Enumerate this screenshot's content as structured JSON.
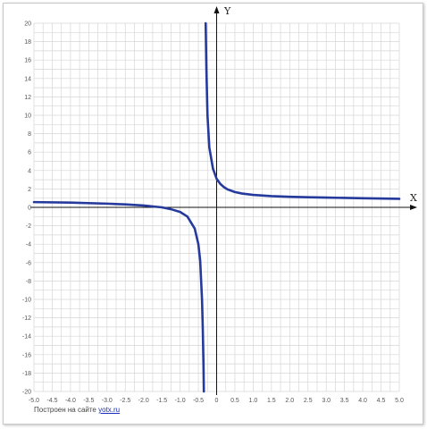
{
  "credit": {
    "text": "Построен на сайте",
    "link": "yotx.ru"
  },
  "chart_data": {
    "type": "line",
    "title": "",
    "xlabel": "X",
    "ylabel": "Y",
    "xlim": [
      -5.0,
      5.0
    ],
    "ylim": [
      -20,
      20
    ],
    "grid": true,
    "x_ticks": [
      "-5.0",
      "-4.5",
      "-4.0",
      "-3.5",
      "-3.0",
      "-2.5",
      "-2.0",
      "-1.5",
      "-1.0",
      "-0.5",
      "0",
      "0.5",
      "1.0",
      "1.5",
      "2.0",
      "2.5",
      "3.0",
      "3.5",
      "4.0",
      "4.5",
      "5.0"
    ],
    "y_ticks": [
      "20",
      "18",
      "16",
      "14",
      "12",
      "10",
      "8",
      "6",
      "4",
      "2",
      "0",
      "-2",
      "-4",
      "-6",
      "-8",
      "-10",
      "-12",
      "-14",
      "-16",
      "-18",
      "-20"
    ],
    "asymptote_x": -0.33,
    "series": [
      {
        "color": "#253a9c",
        "branches": [
          {
            "x": [
              -5.0,
              -4.0,
              -3.0,
              -2.5,
              -2.0,
              -1.5,
              -1.25,
              -1.0,
              -0.8,
              -0.6,
              -0.5,
              -0.45,
              -0.4,
              -0.38,
              -0.36,
              -0.35
            ],
            "y": [
              0.57,
              0.52,
              0.4,
              0.32,
              0.2,
              0.0,
              -0.2,
              -0.5,
              -1.0,
              -2.3,
              -4.0,
              -5.8,
              -10.0,
              -13.0,
              -17.0,
              -20.0
            ]
          },
          {
            "x": [
              -0.3,
              -0.28,
              -0.25,
              -0.2,
              -0.1,
              0.0,
              0.1,
              0.2,
              0.3,
              0.5,
              0.7,
              1.0,
              1.5,
              2.0,
              2.5,
              3.0,
              4.0,
              5.0
            ],
            "y": [
              20.0,
              15.0,
              10.0,
              6.5,
              4.2,
              3.1,
              2.55,
              2.2,
              1.95,
              1.66,
              1.5,
              1.35,
              1.22,
              1.15,
              1.1,
              1.06,
              0.99,
              0.93
            ]
          }
        ]
      }
    ]
  }
}
